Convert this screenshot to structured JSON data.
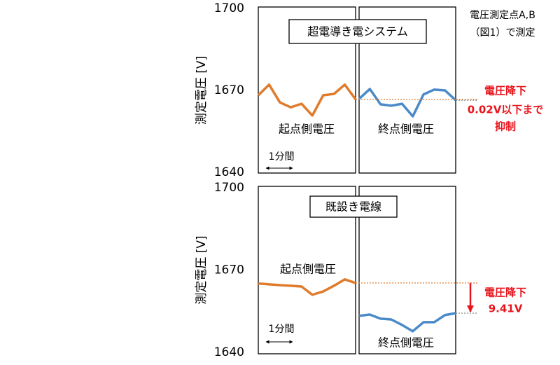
{
  "chart_data": [
    {
      "type": "line",
      "title": "超電導き電システム",
      "ylabel": "測定電圧 [V]",
      "ylim": [
        1640,
        1700
      ],
      "yticks": [
        1640,
        1670,
        1700
      ],
      "categories": [
        null,
        null,
        null,
        null,
        null,
        null,
        null,
        null,
        null,
        null
      ],
      "series": [
        {
          "name": "起点側電圧",
          "color": "#e07b2c",
          "values": [
            1668.2,
            1672.1,
            1665.6,
            1663.8,
            1665.1,
            1660.8,
            1668.2,
            1668.7,
            1672.1,
            1666.7
          ]
        },
        {
          "name": "終点側電圧",
          "color": "#4a8ac8",
          "values": [
            1666.9,
            1670.5,
            1664.9,
            1664.4,
            1665.1,
            1660.5,
            1668.5,
            1670.3,
            1670.0,
            1666.4
          ]
        }
      ],
      "scale_note": "1分間",
      "drop_note": [
        "電圧降下",
        "0.02V以下まで",
        "抑制"
      ],
      "measure_note": [
        "電圧測定点A,B",
        "（図1）で測定"
      ]
    },
    {
      "type": "line",
      "title": "既設き電線",
      "ylabel": "測定電圧 [V]",
      "ylim": [
        1640,
        1700
      ],
      "yticks": [
        1640,
        1670,
        1700
      ],
      "categories": [
        null,
        null,
        null,
        null,
        null,
        null,
        null,
        null,
        null,
        null
      ],
      "series": [
        {
          "name": "起点側電圧",
          "color": "#e07b2c",
          "values": [
            1665.1,
            1664.8,
            1664.5,
            1664.3,
            1664.0,
            1661.0,
            1662.2,
            1664.3,
            1666.6,
            1665.3
          ]
        },
        {
          "name": "終点側電圧",
          "color": "#4a8ac8",
          "values": [
            1653.3,
            1653.8,
            1652.3,
            1652.0,
            1650.0,
            1647.7,
            1651.0,
            1651.0,
            1653.6,
            1654.3
          ]
        }
      ],
      "scale_note": "1分間",
      "drop_note": [
        "電圧降下",
        "9.41V"
      ]
    }
  ]
}
